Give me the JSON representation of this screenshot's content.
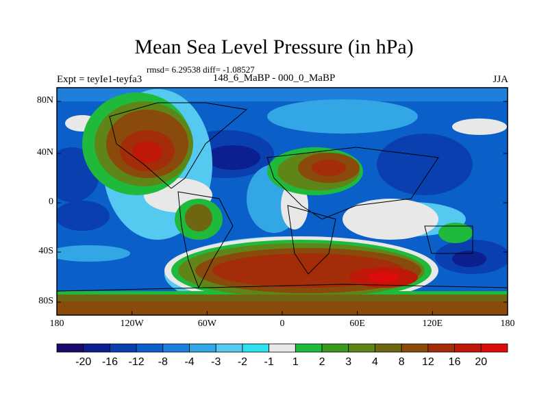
{
  "figure": {
    "title": "Mean Sea Level Pressure (in hPa)",
    "stats": "rmsd= 6.29538 diff= -1.08527",
    "experiment": "Expt = teyIe1-teyfa3",
    "period": "148_6_MaBP - 000_0_MaBP",
    "season": "JJA"
  },
  "map": {
    "lat_labels": [
      "80N",
      "40N",
      "0",
      "40S",
      "80S"
    ],
    "lon_labels": [
      "180",
      "120W",
      "60W",
      "0",
      "60E",
      "120E",
      "180"
    ]
  },
  "colorbar": {
    "colors": [
      "#1b0a6b",
      "#0c1f8f",
      "#0a3fb0",
      "#0a60c8",
      "#1f80db",
      "#33a6e6",
      "#55c9ef",
      "#2fe0ee",
      "#e8e8e8",
      "#1fba3c",
      "#3a9a1e",
      "#5f8417",
      "#6f6611",
      "#8a4a0c",
      "#a22d08",
      "#c01808",
      "#dd0c0c"
    ],
    "labels": [
      "-20",
      "-16",
      "-12",
      "-8",
      "-4",
      "-3",
      "-2",
      "-1",
      "1",
      "2",
      "3",
      "4",
      "8",
      "12",
      "16",
      "20"
    ]
  }
}
